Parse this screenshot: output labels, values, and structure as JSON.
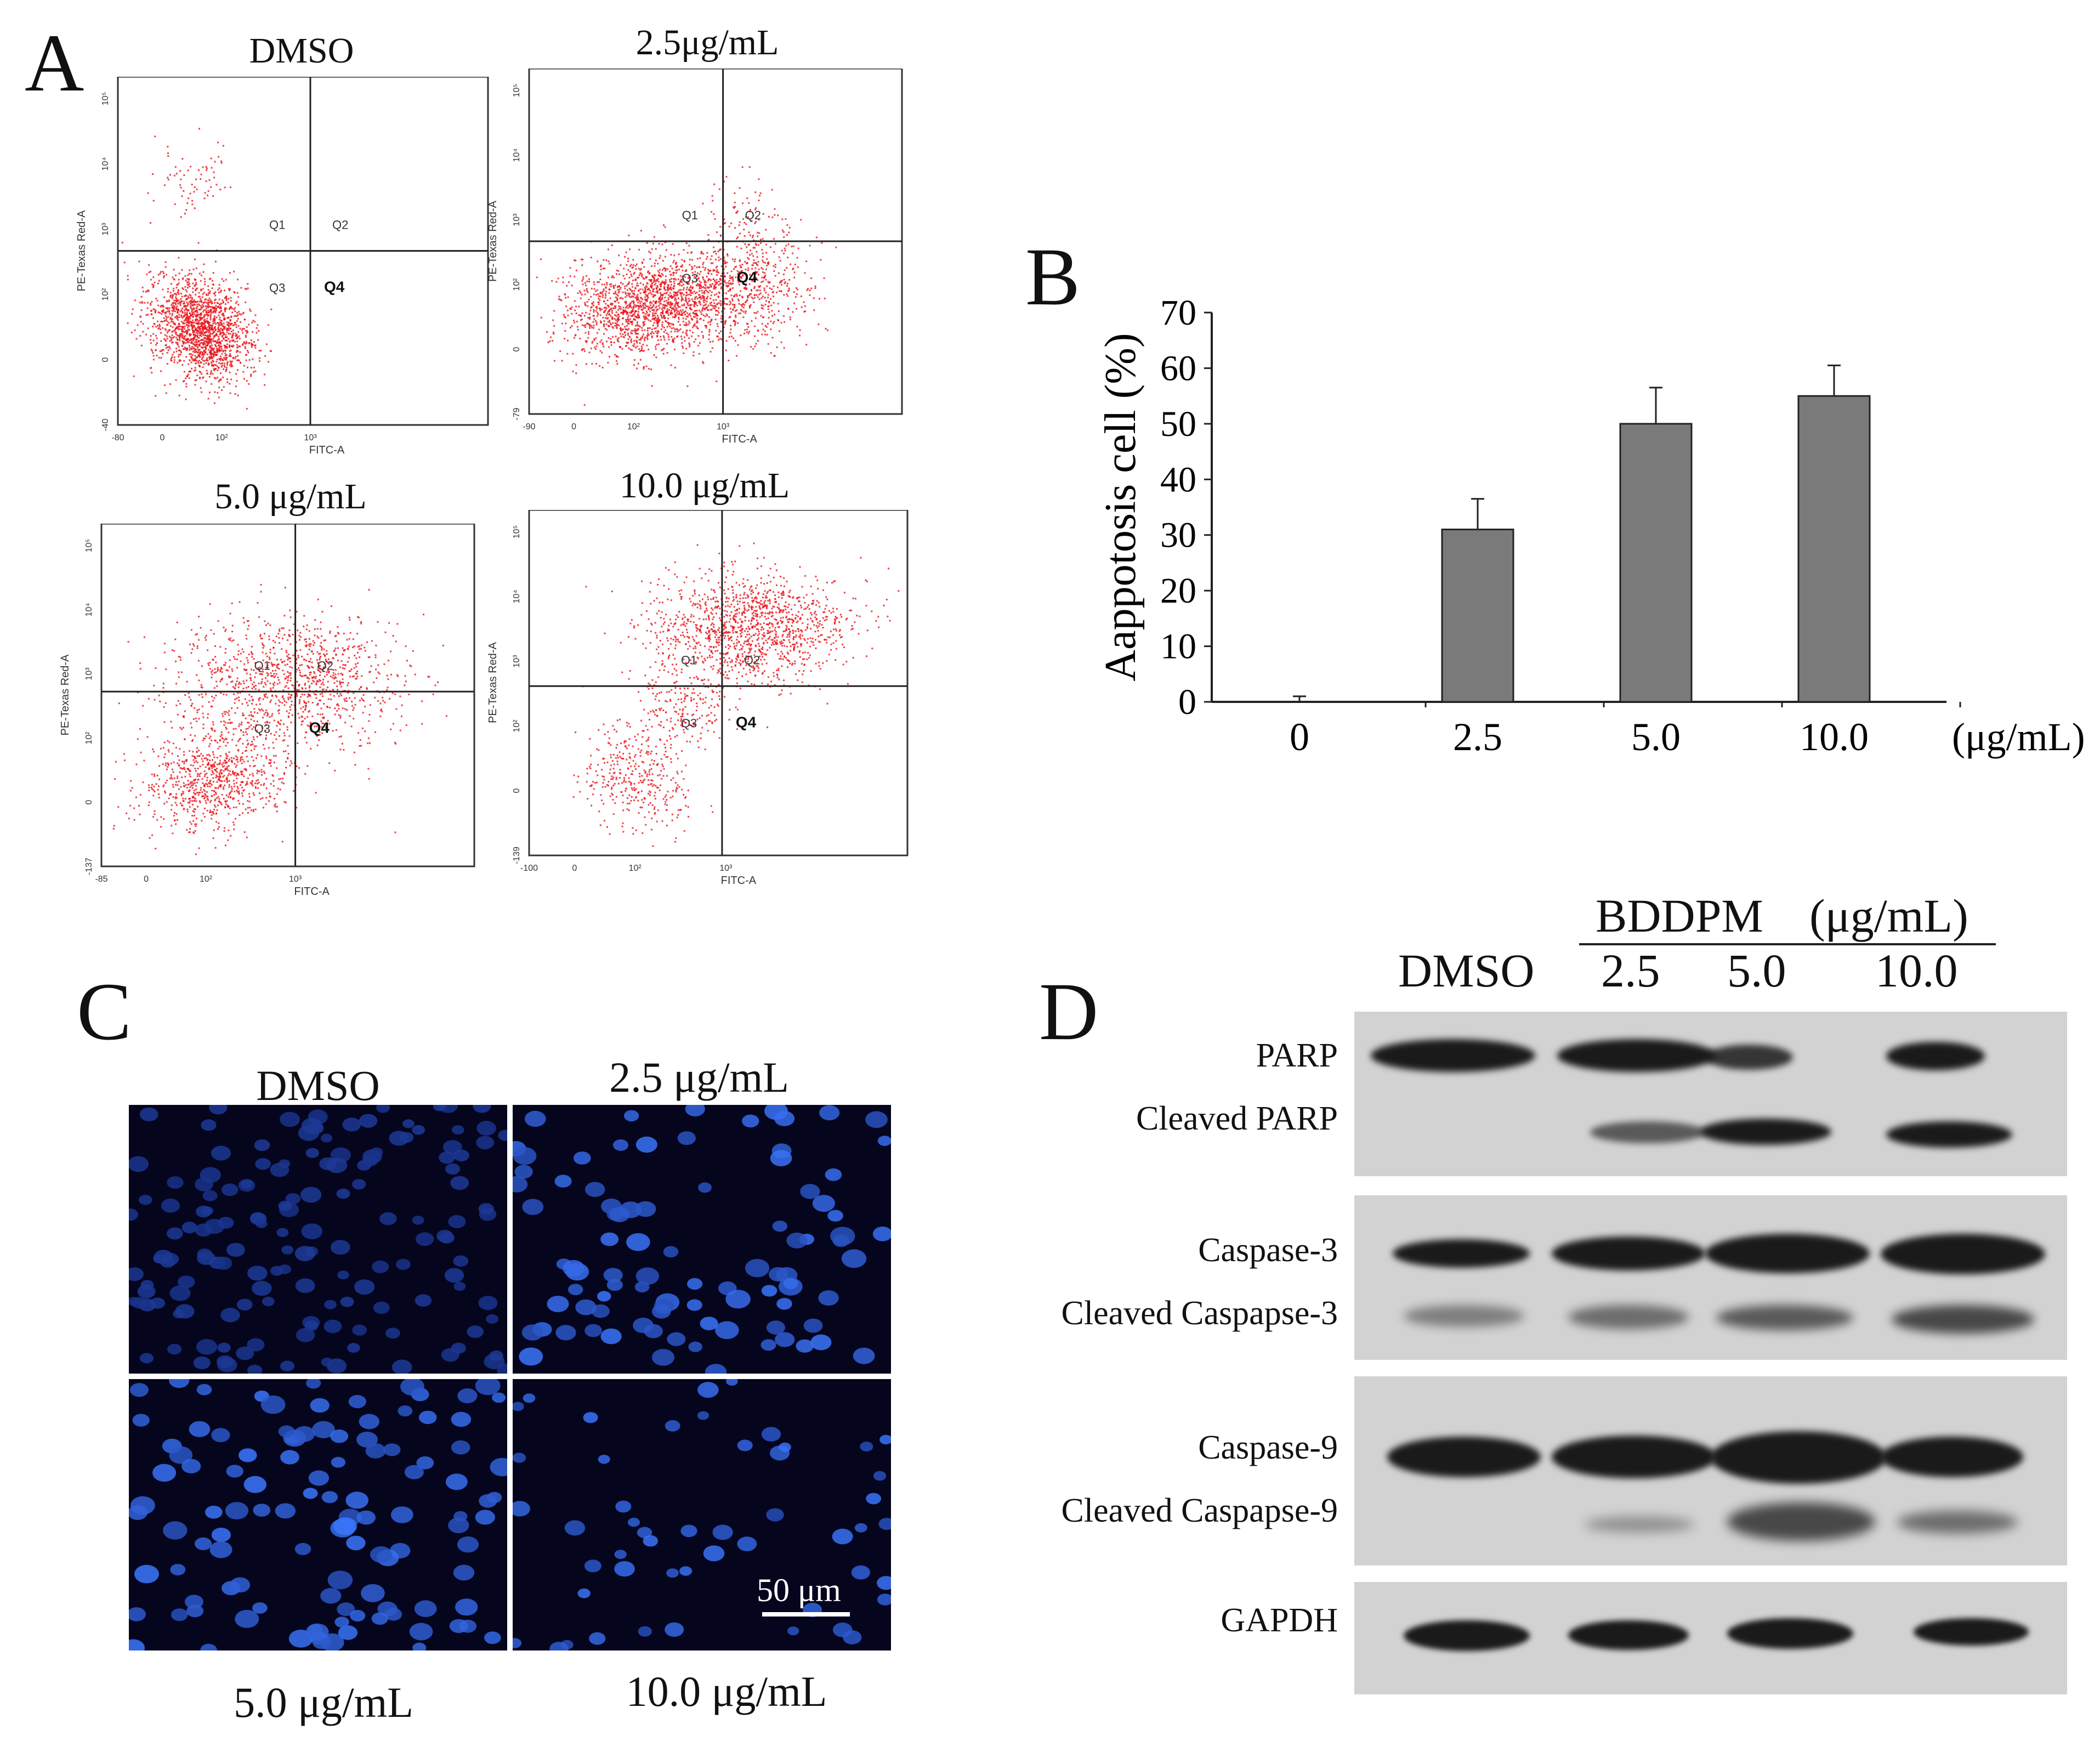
{
  "panels": {
    "A": {
      "letter": "A",
      "plots": [
        {
          "title": "DMSO",
          "x_axis_label": "FITC-A",
          "y_axis_label": "PE-Texas Red-A",
          "quadrants": [
            "Q1",
            "Q2",
            "Q3",
            "Q4"
          ],
          "y_ticks": [
            "10⁵",
            "10⁴",
            "10³",
            "10²",
            "0",
            "-40"
          ],
          "x_ticks": [
            "-80",
            "0",
            "10²",
            "10³"
          ]
        },
        {
          "title": "2.5μg/mL",
          "x_axis_label": "FITC-A",
          "y_axis_label": "PE-Texas Red-A",
          "quadrants": [
            "Q1",
            "Q2",
            "Q3",
            "Q4"
          ],
          "y_ticks": [
            "10⁵",
            "10⁴",
            "10³",
            "10²",
            "0",
            "-79"
          ],
          "x_ticks": [
            "-90",
            "0",
            "10²",
            "10³"
          ]
        },
        {
          "title": "5.0 μg/mL",
          "x_axis_label": "FITC-A",
          "y_axis_label": "PE-Texas Red-A",
          "quadrants": [
            "Q1",
            "Q2",
            "Q3",
            "Q4"
          ],
          "y_ticks": [
            "10⁵",
            "10⁴",
            "10³",
            "10²",
            "0",
            "-137"
          ],
          "x_ticks": [
            "-85",
            "0",
            "10²",
            "10³"
          ]
        },
        {
          "title": "10.0 μg/mL",
          "x_axis_label": "FITC-A",
          "y_axis_label": "PE-Texas Red-A",
          "quadrants": [
            "Q1",
            "Q2",
            "Q3",
            "Q4"
          ],
          "y_ticks": [
            "10⁵",
            "10⁴",
            "10³",
            "10²",
            "0",
            "-139"
          ],
          "x_ticks": [
            "-100",
            "0",
            "10²",
            "10³"
          ]
        }
      ]
    },
    "B": {
      "letter": "B",
      "unit_label": "(μg/mL)"
    },
    "C": {
      "letter": "C",
      "images": [
        {
          "label": "DMSO"
        },
        {
          "label": "2.5 μg/mL"
        },
        {
          "label": "5.0 μg/mL"
        },
        {
          "label": "10.0 μg/mL"
        }
      ],
      "scale_bar": "50 μm"
    },
    "D": {
      "letter": "D",
      "header": {
        "treatment": "BDDPM",
        "unit": "(μg/mL)"
      },
      "lanes": [
        "DMSO",
        "2.5",
        "5.0",
        "10.0"
      ],
      "labels": [
        "PARP",
        "Cleaved PARP",
        "Caspase-3",
        "Cleaved Caspapse-3",
        "Caspase-9",
        "Cleaved Caspapse-9",
        "GAPDH"
      ]
    }
  },
  "colors": {
    "dots": "#e8141a",
    "bar": "#7a7a7a",
    "nuclei": "#2a55ff",
    "micro_bg": "#05051e"
  },
  "chart_data": {
    "type": "bar",
    "categories": [
      "0",
      "2.5",
      "5.0",
      "10.0"
    ],
    "values": [
      0,
      31,
      50,
      55
    ],
    "errors": [
      1,
      5.5,
      6.5,
      5.5
    ],
    "title": "",
    "xlabel": "(μg/mL)",
    "ylabel": "Aappotosis cell (%)",
    "ylim": [
      0,
      70
    ],
    "yticks": [
      0,
      10,
      20,
      30,
      40,
      50,
      60,
      70
    ],
    "grid": false,
    "legend": "none"
  }
}
